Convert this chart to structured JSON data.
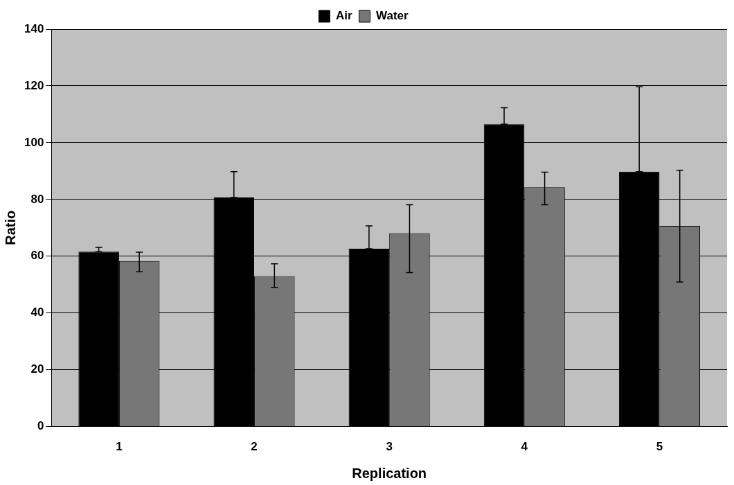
{
  "chart_data": {
    "type": "bar",
    "xlabel": "Replication",
    "ylabel": "Ratio",
    "categories": [
      "1",
      "2",
      "3",
      "4",
      "5"
    ],
    "series": [
      {
        "name": "Air",
        "color": "#000000",
        "values": [
          61.6,
          80.7,
          62.6,
          106.5,
          89.8
        ],
        "errors": [
          [
            61.6,
            63.1
          ],
          [
            80.7,
            89.8
          ],
          [
            62.6,
            70.7
          ],
          [
            106.5,
            112.3
          ],
          [
            89.8,
            119.7
          ]
        ]
      },
      {
        "name": "Water",
        "color": "#777777",
        "values": [
          58.3,
          53.0,
          68.1,
          84.3,
          70.7
        ],
        "errors": [
          [
            54.5,
            61.4
          ],
          [
            49.0,
            57.3
          ],
          [
            54.2,
            78.1
          ],
          [
            78.1,
            89.6
          ],
          [
            50.9,
            90.3
          ]
        ]
      }
    ],
    "ylim": [
      0,
      140
    ],
    "yticks": [
      0,
      20,
      40,
      60,
      80,
      100,
      120,
      140
    ],
    "grid": "y",
    "legend": "top"
  }
}
